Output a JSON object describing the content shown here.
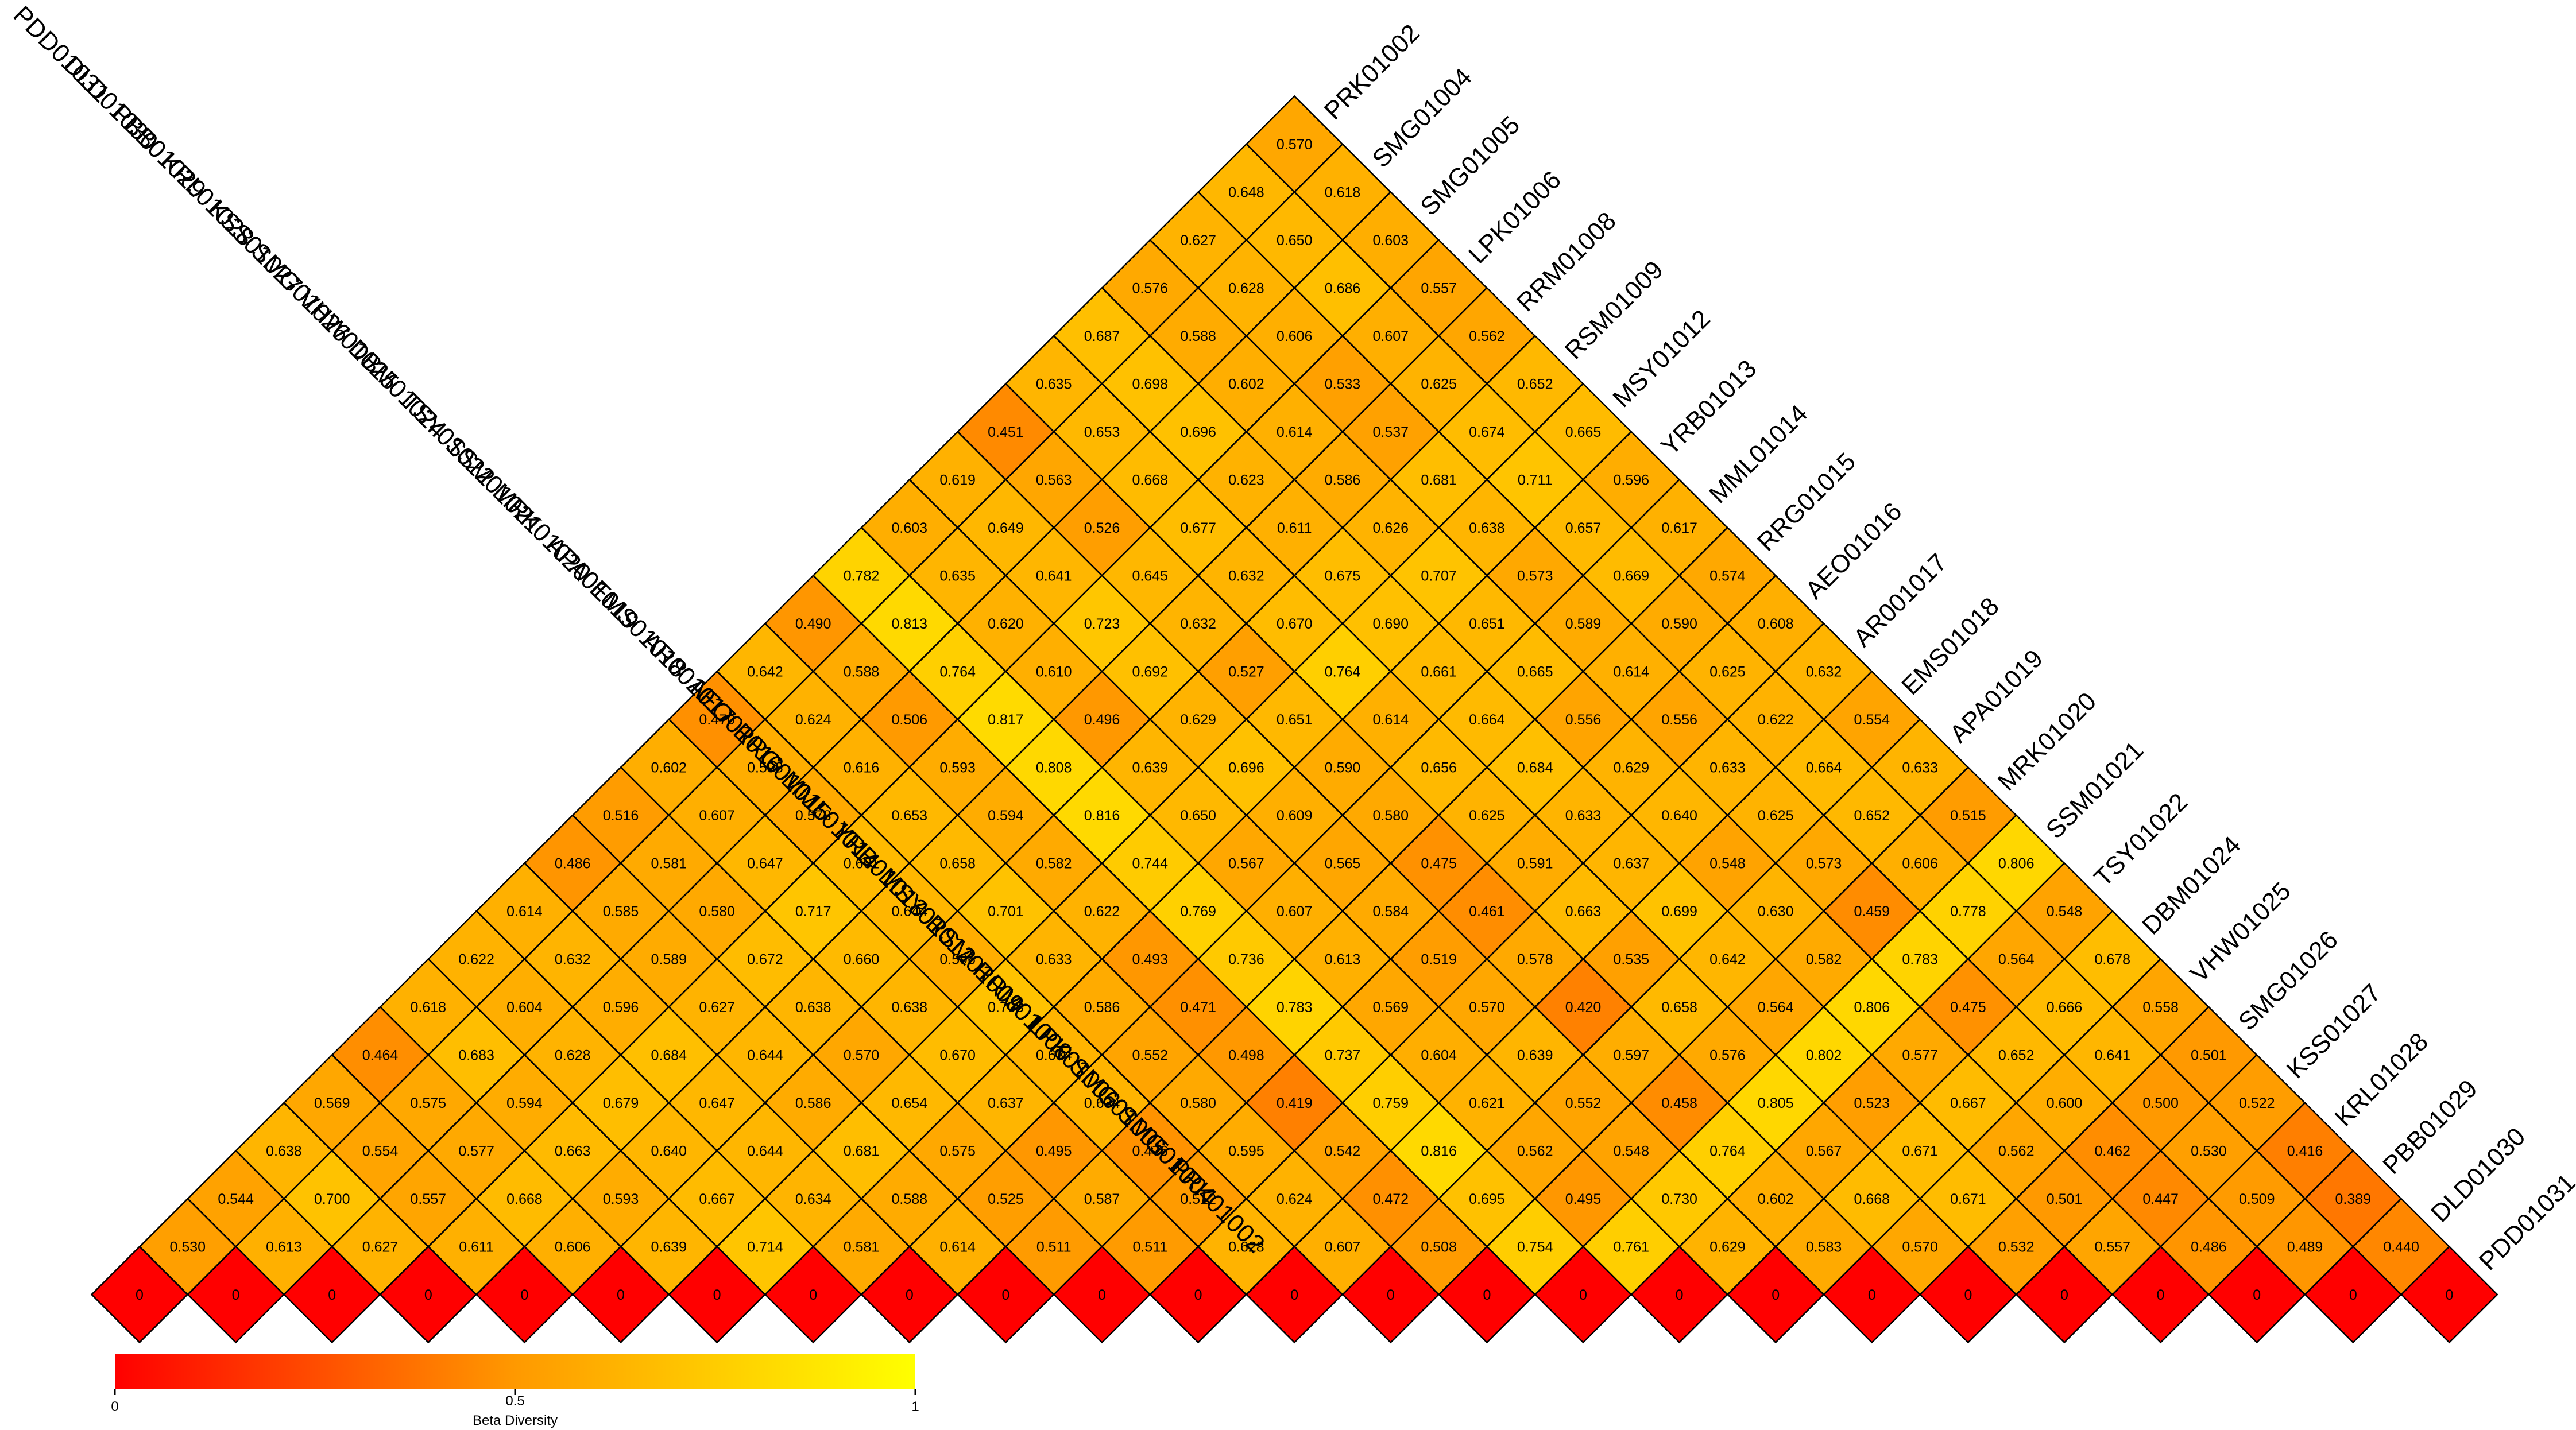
{
  "chart_data": {
    "type": "heatmap",
    "layout": "triangular",
    "samples": [
      "PRK01002",
      "SMG01004",
      "SMG01005",
      "LPK01006",
      "RRM01008",
      "RSM01009",
      "MSY01012",
      "YRB01013",
      "MML01014",
      "RRG01015",
      "AEO01016",
      "AR001017",
      "EMS01018",
      "APA01019",
      "MRK01020",
      "SSM01021",
      "TSY01022",
      "DBM01024",
      "VHW01025",
      "SMG01026",
      "KSS01027",
      "KRL01028",
      "PBB01029",
      "DLD01030",
      "PDD01031"
    ],
    "rows": [
      [
        "0"
      ],
      [
        "0.530",
        "0"
      ],
      [
        "0.544",
        "0.613",
        "0"
      ],
      [
        "0.638",
        "0.700",
        "0.627",
        "0"
      ],
      [
        "0.569",
        "0.554",
        "0.557",
        "0.611",
        "0"
      ],
      [
        "0.464",
        "0.575",
        "0.577",
        "0.668",
        "0.606",
        "0"
      ],
      [
        "0.618",
        "0.683",
        "0.594",
        "0.663",
        "0.593",
        "0.639",
        "0"
      ],
      [
        "0.622",
        "0.604",
        "0.628",
        "0.679",
        "0.640",
        "0.667",
        "0.714",
        "0"
      ],
      [
        "0.614",
        "0.632",
        "0.596",
        "0.684",
        "0.647",
        "0.644",
        "0.634",
        "0.581",
        "0"
      ],
      [
        "0.486",
        "0.585",
        "0.589",
        "0.627",
        "0.644",
        "0.586",
        "0.681",
        "0.588",
        "0.614",
        "0"
      ],
      [
        "0.516",
        "0.581",
        "0.580",
        "0.672",
        "0.638",
        "0.570",
        "0.654",
        "0.575",
        "0.525",
        "0.511",
        "0"
      ],
      [
        "0.602",
        "0.607",
        "0.647",
        "0.717",
        "0.660",
        "0.638",
        "0.670",
        "0.637",
        "0.495",
        "0.587",
        "0.511",
        "0"
      ],
      [
        "0.470",
        "0.598",
        "0.578",
        "0.661",
        "0.644",
        "0.596",
        "0.703",
        "0.634",
        "0.634",
        "0.476",
        "0.512",
        "0.628",
        "0"
      ],
      [
        "0.642",
        "0.624",
        "0.616",
        "0.653",
        "0.658",
        "0.701",
        "0.633",
        "0.586",
        "0.552",
        "0.580",
        "0.595",
        "0.624",
        "0.607",
        "0"
      ],
      [
        "0.490",
        "0.588",
        "0.506",
        "0.593",
        "0.594",
        "0.582",
        "0.622",
        "0.493",
        "0.471",
        "0.498",
        "0.419",
        "0.542",
        "0.472",
        "0.508",
        "0"
      ],
      [
        "0.782",
        "0.813",
        "0.764",
        "0.817",
        "0.808",
        "0.816",
        "0.744",
        "0.769",
        "0.736",
        "0.783",
        "0.737",
        "0.759",
        "0.816",
        "0.695",
        "0.754",
        "0"
      ],
      [
        "0.603",
        "0.635",
        "0.620",
        "0.610",
        "0.496",
        "0.639",
        "0.650",
        "0.567",
        "0.607",
        "0.613",
        "0.569",
        "0.604",
        "0.621",
        "0.562",
        "0.495",
        "0.761",
        "0"
      ],
      [
        "0.619",
        "0.649",
        "0.641",
        "0.723",
        "0.692",
        "0.629",
        "0.696",
        "0.609",
        "0.565",
        "0.584",
        "0.519",
        "0.570",
        "0.639",
        "0.552",
        "0.548",
        "0.730",
        "0.629",
        "0"
      ],
      [
        "0.451",
        "0.563",
        "0.526",
        "0.645",
        "0.632",
        "0.527",
        "0.651",
        "0.590",
        "0.580",
        "0.475",
        "0.461",
        "0.578",
        "0.420",
        "0.597",
        "0.458",
        "0.764",
        "0.602",
        "0.583",
        "0"
      ],
      [
        "0.635",
        "0.653",
        "0.668",
        "0.677",
        "0.632",
        "0.670",
        "0.764",
        "0.614",
        "0.656",
        "0.625",
        "0.591",
        "0.663",
        "0.535",
        "0.658",
        "0.576",
        "0.805",
        "0.567",
        "0.668",
        "0.570",
        "0"
      ],
      [
        "0.687",
        "0.698",
        "0.696",
        "0.623",
        "0.611",
        "0.675",
        "0.690",
        "0.661",
        "0.664",
        "0.684",
        "0.633",
        "0.637",
        "0.699",
        "0.642",
        "0.564",
        "0.802",
        "0.523",
        "0.671",
        "0.671",
        "0.532",
        "0"
      ],
      [
        "0.576",
        "0.588",
        "0.602",
        "0.614",
        "0.586",
        "0.626",
        "0.707",
        "0.651",
        "0.665",
        "0.556",
        "0.629",
        "0.640",
        "0.548",
        "0.630",
        "0.582",
        "0.806",
        "0.577",
        "0.667",
        "0.562",
        "0.501",
        "0.557",
        "0"
      ],
      [
        "0.627",
        "0.628",
        "0.606",
        "0.533",
        "0.537",
        "0.681",
        "0.638",
        "0.573",
        "0.589",
        "0.614",
        "0.556",
        "0.633",
        "0.625",
        "0.573",
        "0.459",
        "0.783",
        "0.475",
        "0.652",
        "0.600",
        "0.462",
        "0.447",
        "0.486",
        "0"
      ],
      [
        "0.648",
        "0.650",
        "0.686",
        "0.607",
        "0.625",
        "0.674",
        "0.711",
        "0.657",
        "0.669",
        "0.590",
        "0.625",
        "0.622",
        "0.664",
        "0.652",
        "0.606",
        "0.778",
        "0.564",
        "0.666",
        "0.641",
        "0.500",
        "0.530",
        "0.509",
        "0.489",
        "0"
      ],
      [
        "0.570",
        "0.618",
        "0.603",
        "0.557",
        "0.562",
        "0.652",
        "0.665",
        "0.596",
        "0.617",
        "0.574",
        "0.608",
        "0.632",
        "0.554",
        "0.633",
        "0.515",
        "0.806",
        "0.548",
        "0.678",
        "0.558",
        "0.501",
        "0.522",
        "0.416",
        "0.389",
        "0.440",
        "0"
      ]
    ],
    "colorbar": {
      "title": "Beta Diversity",
      "ticks": [
        "0",
        "0.5",
        "1"
      ],
      "range": [
        0,
        1
      ],
      "low_color": "#ff0000",
      "mid_color": "#ff9900",
      "high_color": "#ffff00"
    },
    "cell_border_color": "#000000"
  }
}
